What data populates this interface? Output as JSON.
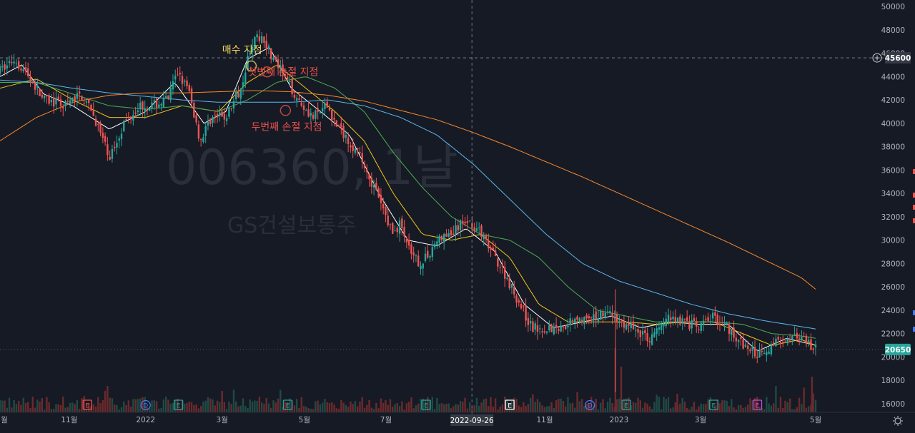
{
  "chart_data": {
    "type": "candlestick",
    "watermark": {
      "code": "006360, 1날",
      "name": "GS건설보통주"
    },
    "y_axis": {
      "min": 16000,
      "max": 50000,
      "ticks": [
        16000,
        18000,
        20000,
        22000,
        24000,
        26000,
        28000,
        30000,
        32000,
        34000,
        36000,
        38000,
        40000,
        42000,
        44000,
        46000,
        48000,
        50000
      ]
    },
    "x_labels": [
      {
        "label": "월",
        "t": 0.005
      },
      {
        "label": "11월",
        "t": 0.095
      },
      {
        "label": "2022",
        "t": 0.2
      },
      {
        "label": "3월",
        "t": 0.305
      },
      {
        "label": "5월",
        "t": 0.418
      },
      {
        "label": "7월",
        "t": 0.53
      },
      {
        "label": "9월",
        "t": 0.642
      },
      {
        "label": "11월",
        "t": 0.748
      },
      {
        "label": "2023",
        "t": 0.85
      },
      {
        "label": "3월",
        "t": 0.962
      },
      {
        "label": "5월",
        "t": 1.12
      }
    ],
    "price_anchors": [
      [
        0.0,
        44500
      ],
      [
        0.02,
        45500
      ],
      [
        0.04,
        44000
      ],
      [
        0.06,
        42000
      ],
      [
        0.09,
        41500
      ],
      [
        0.11,
        42500
      ],
      [
        0.13,
        40500
      ],
      [
        0.15,
        37000
      ],
      [
        0.17,
        40000
      ],
      [
        0.19,
        41500
      ],
      [
        0.21,
        41500
      ],
      [
        0.23,
        42000
      ],
      [
        0.245,
        44500
      ],
      [
        0.26,
        42500
      ],
      [
        0.275,
        38500
      ],
      [
        0.29,
        40500
      ],
      [
        0.31,
        40500
      ],
      [
        0.33,
        43000
      ],
      [
        0.345,
        46800
      ],
      [
        0.36,
        47500
      ],
      [
        0.375,
        45500
      ],
      [
        0.39,
        44000
      ],
      [
        0.41,
        42000
      ],
      [
        0.43,
        40500
      ],
      [
        0.45,
        41500
      ],
      [
        0.46,
        40000
      ],
      [
        0.48,
        38500
      ],
      [
        0.5,
        36500
      ],
      [
        0.52,
        33500
      ],
      [
        0.54,
        30500
      ],
      [
        0.55,
        31500
      ],
      [
        0.565,
        28500
      ],
      [
        0.58,
        28000
      ],
      [
        0.6,
        30000
      ],
      [
        0.62,
        30500
      ],
      [
        0.64,
        31800
      ],
      [
        0.655,
        31000
      ],
      [
        0.67,
        29500
      ],
      [
        0.69,
        27500
      ],
      [
        0.71,
        25000
      ],
      [
        0.73,
        22500
      ],
      [
        0.75,
        22500
      ],
      [
        0.77,
        22500
      ],
      [
        0.79,
        23500
      ],
      [
        0.81,
        23000
      ],
      [
        0.83,
        24000
      ],
      [
        0.85,
        23000
      ],
      [
        0.87,
        22500
      ],
      [
        0.89,
        21500
      ],
      [
        0.905,
        22500
      ],
      [
        0.92,
        23500
      ],
      [
        0.94,
        23000
      ],
      [
        0.96,
        22500
      ],
      [
        0.98,
        23500
      ],
      [
        1.0,
        22500
      ],
      [
        1.02,
        21000
      ],
      [
        1.04,
        20300
      ],
      [
        1.06,
        21000
      ],
      [
        1.08,
        21800
      ],
      [
        1.1,
        21500
      ],
      [
        1.12,
        20650
      ]
    ],
    "series": [
      {
        "color": "#ffffff",
        "anchors": [
          [
            0.0,
            44000
          ],
          [
            0.03,
            45000
          ],
          [
            0.06,
            42500
          ],
          [
            0.1,
            41500
          ],
          [
            0.15,
            39500
          ],
          [
            0.2,
            41000
          ],
          [
            0.24,
            43500
          ],
          [
            0.28,
            40000
          ],
          [
            0.31,
            41000
          ],
          [
            0.34,
            45500
          ],
          [
            0.37,
            46500
          ],
          [
            0.4,
            43000
          ],
          [
            0.44,
            41000
          ],
          [
            0.48,
            39000
          ],
          [
            0.52,
            34000
          ],
          [
            0.56,
            30000
          ],
          [
            0.6,
            29500
          ],
          [
            0.64,
            31000
          ],
          [
            0.68,
            29000
          ],
          [
            0.72,
            24500
          ],
          [
            0.76,
            22500
          ],
          [
            0.8,
            23000
          ],
          [
            0.84,
            23500
          ],
          [
            0.88,
            22500
          ],
          [
            0.92,
            23000
          ],
          [
            0.96,
            22800
          ],
          [
            1.0,
            22800
          ],
          [
            1.04,
            20500
          ],
          [
            1.08,
            21600
          ],
          [
            1.12,
            21000
          ]
        ]
      },
      {
        "color": "#f5c518",
        "anchors": [
          [
            0.0,
            43000
          ],
          [
            0.05,
            43800
          ],
          [
            0.1,
            42000
          ],
          [
            0.15,
            40500
          ],
          [
            0.2,
            40500
          ],
          [
            0.25,
            41500
          ],
          [
            0.3,
            41000
          ],
          [
            0.34,
            43500
          ],
          [
            0.38,
            45000
          ],
          [
            0.42,
            43000
          ],
          [
            0.46,
            41000
          ],
          [
            0.5,
            38500
          ],
          [
            0.54,
            34000
          ],
          [
            0.58,
            30500
          ],
          [
            0.62,
            30000
          ],
          [
            0.66,
            30500
          ],
          [
            0.7,
            28500
          ],
          [
            0.74,
            24500
          ],
          [
            0.78,
            23000
          ],
          [
            0.82,
            23000
          ],
          [
            0.86,
            23000
          ],
          [
            0.9,
            22800
          ],
          [
            0.94,
            23000
          ],
          [
            0.98,
            23000
          ],
          [
            1.02,
            22000
          ],
          [
            1.06,
            21000
          ],
          [
            1.1,
            21500
          ],
          [
            1.12,
            21000
          ]
        ]
      },
      {
        "color": "#4caf50",
        "anchors": [
          [
            0.0,
            43500
          ],
          [
            0.05,
            43500
          ],
          [
            0.1,
            42500
          ],
          [
            0.15,
            41500
          ],
          [
            0.2,
            41200
          ],
          [
            0.25,
            41500
          ],
          [
            0.3,
            41000
          ],
          [
            0.34,
            42000
          ],
          [
            0.38,
            43500
          ],
          [
            0.42,
            44000
          ],
          [
            0.46,
            43000
          ],
          [
            0.5,
            41000
          ],
          [
            0.54,
            37500
          ],
          [
            0.58,
            34500
          ],
          [
            0.62,
            32000
          ],
          [
            0.66,
            30500
          ],
          [
            0.7,
            30000
          ],
          [
            0.74,
            28500
          ],
          [
            0.78,
            26000
          ],
          [
            0.82,
            24000
          ],
          [
            0.86,
            23500
          ],
          [
            0.9,
            23000
          ],
          [
            0.94,
            23000
          ],
          [
            0.98,
            23000
          ],
          [
            1.02,
            22800
          ],
          [
            1.06,
            22000
          ],
          [
            1.1,
            21800
          ],
          [
            1.12,
            21600
          ]
        ]
      },
      {
        "color": "#5bb8ee",
        "anchors": [
          [
            0.0,
            43700
          ],
          [
            0.05,
            43500
          ],
          [
            0.1,
            43000
          ],
          [
            0.15,
            42600
          ],
          [
            0.2,
            42300
          ],
          [
            0.25,
            42000
          ],
          [
            0.3,
            41800
          ],
          [
            0.35,
            41800
          ],
          [
            0.4,
            41800
          ],
          [
            0.45,
            42000
          ],
          [
            0.5,
            41500
          ],
          [
            0.55,
            40500
          ],
          [
            0.6,
            39000
          ],
          [
            0.65,
            36500
          ],
          [
            0.7,
            33500
          ],
          [
            0.75,
            30500
          ],
          [
            0.8,
            28000
          ],
          [
            0.85,
            26500
          ],
          [
            0.9,
            25500
          ],
          [
            0.95,
            24500
          ],
          [
            1.0,
            23700
          ],
          [
            1.05,
            23100
          ],
          [
            1.1,
            22600
          ],
          [
            1.12,
            22400
          ]
        ]
      },
      {
        "color": "#f7892b",
        "anchors": [
          [
            0.0,
            38500
          ],
          [
            0.05,
            40500
          ],
          [
            0.1,
            41800
          ],
          [
            0.15,
            42400
          ],
          [
            0.2,
            42600
          ],
          [
            0.25,
            42600
          ],
          [
            0.3,
            42700
          ],
          [
            0.35,
            42800
          ],
          [
            0.4,
            42700
          ],
          [
            0.45,
            42400
          ],
          [
            0.5,
            41900
          ],
          [
            0.55,
            41100
          ],
          [
            0.6,
            40300
          ],
          [
            0.65,
            39200
          ],
          [
            0.7,
            38000
          ],
          [
            0.75,
            36700
          ],
          [
            0.8,
            35400
          ],
          [
            0.85,
            34000
          ],
          [
            0.9,
            32600
          ],
          [
            0.95,
            31200
          ],
          [
            1.0,
            29800
          ],
          [
            1.05,
            28300
          ],
          [
            1.1,
            26800
          ],
          [
            1.12,
            25800
          ]
        ]
      }
    ],
    "annotations": [
      {
        "text": "매수 지점",
        "t": 0.305,
        "price": 46000,
        "color": "#f2d75c",
        "marker_t": 0.345,
        "marker_price": 44900
      },
      {
        "text": "첫번째 손절 지점",
        "t": 0.34,
        "price": 44100,
        "color": "#e8514a",
        "marker_t": 0.367,
        "marker_price": 44400
      },
      {
        "text": "두번째 손절 지점",
        "t": 0.345,
        "price": 39400,
        "color": "#e8514a",
        "marker_t": 0.392,
        "marker_price": 41100
      }
    ],
    "event_markers": [
      {
        "letter": "E",
        "t": 0.12,
        "color": "#e8514a"
      },
      {
        "letter": "D",
        "t": 0.2,
        "color": "#4a78f0"
      },
      {
        "letter": "E",
        "t": 0.245,
        "color": "#26a69a"
      },
      {
        "letter": "E",
        "t": 0.395,
        "color": "#26a69a"
      },
      {
        "letter": "E",
        "t": 0.585,
        "color": "#26a69a"
      },
      {
        "letter": "E",
        "t": 0.7,
        "color": "#ffffff"
      },
      {
        "letter": "D",
        "t": 0.81,
        "color": "#4a78f0"
      },
      {
        "letter": "E",
        "t": 0.86,
        "color": "#26a69a"
      },
      {
        "letter": "E",
        "t": 0.98,
        "color": "#26a69a"
      },
      {
        "letter": "E",
        "t": 1.04,
        "color": "#c64ccf"
      }
    ],
    "crosshair": {
      "price_label": "45600",
      "date_label": "2022-09-26",
      "t": 0.648
    },
    "current_price_label": "20650",
    "legend": "none",
    "grid": false
  },
  "colors": {
    "background": "#161a25",
    "up": "#26a69a",
    "down": "#ef5350",
    "text": "#b2b5be"
  }
}
